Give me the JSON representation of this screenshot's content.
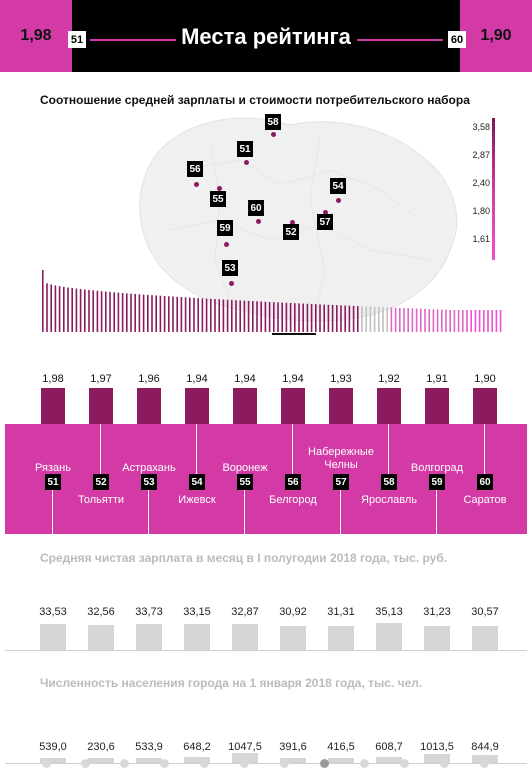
{
  "header": {
    "left_value": "1,98",
    "left_badge": "51",
    "title": "Места рейтинга",
    "right_badge": "60",
    "right_value": "1,90"
  },
  "map": {
    "title": "Соотношение средней зарплаты и стоимости потребительского набора",
    "legend": [
      "3,58",
      "2,87",
      "2,40",
      "1,80",
      "1,61"
    ],
    "pins": [
      "58",
      "51",
      "56",
      "55",
      "54",
      "60",
      "57",
      "52",
      "59",
      "53"
    ]
  },
  "colors": {
    "magenta": "#d43aa6",
    "dark_magenta": "#8b1a5f",
    "gray_bar": "#d6d6d6"
  },
  "ranking": {
    "values": [
      "1,98",
      "1,97",
      "1,96",
      "1,94",
      "1,94",
      "1,94",
      "1,93",
      "1,92",
      "1,91",
      "1,90"
    ],
    "cities": [
      {
        "rank": "51",
        "name": "Рязань"
      },
      {
        "rank": "52",
        "name": "Тольятти"
      },
      {
        "rank": "53",
        "name": "Астрахань"
      },
      {
        "rank": "54",
        "name": "Ижевск"
      },
      {
        "rank": "55",
        "name": "Воронеж"
      },
      {
        "rank": "56",
        "name": "Белгород"
      },
      {
        "rank": "57",
        "name": "Набережные Челны"
      },
      {
        "rank": "58",
        "name": "Ярославль"
      },
      {
        "rank": "59",
        "name": "Волгоград"
      },
      {
        "rank": "60",
        "name": "Саратов"
      }
    ]
  },
  "salary": {
    "title": "Средняя чистая зарплата в месяц в I полугодии 2018 года, тыс. руб.",
    "values": [
      "33,53",
      "32,56",
      "33,73",
      "33,15",
      "32,87",
      "30,92",
      "31,31",
      "35,13",
      "31,23",
      "30,57"
    ]
  },
  "population": {
    "title": "Численность населения города на 1 января 2018 года, тыс. чел.",
    "values": [
      "539,0",
      "230,6",
      "533,9",
      "648,2",
      "1047,5",
      "391,6",
      "416,5",
      "608,7",
      "1013,5",
      "844,9"
    ]
  },
  "chart_data": [
    {
      "type": "bar",
      "title": "Соотношение средней зарплаты и стоимости потребительского набора",
      "categories": [
        "Рязань",
        "Тольятти",
        "Астрахань",
        "Ижевск",
        "Воронеж",
        "Белгород",
        "Набережные Челны",
        "Ярославль",
        "Волгоград",
        "Саратов"
      ],
      "values": [
        1.98,
        1.97,
        1.96,
        1.94,
        1.94,
        1.94,
        1.93,
        1.92,
        1.91,
        1.9
      ]
    },
    {
      "type": "bar",
      "title": "Средняя чистая зарплата в месяц в I полугодии 2018 года, тыс. руб.",
      "categories": [
        "Рязань",
        "Тольятти",
        "Астрахань",
        "Ижевск",
        "Воронеж",
        "Белгород",
        "Набережные Челны",
        "Ярославль",
        "Волгоград",
        "Саратов"
      ],
      "values": [
        33.53,
        32.56,
        33.73,
        33.15,
        32.87,
        30.92,
        31.31,
        35.13,
        31.23,
        30.57
      ]
    },
    {
      "type": "bar",
      "title": "Численность населения города на 1 января 2018 года, тыс. чел.",
      "categories": [
        "Рязань",
        "Тольятти",
        "Астрахань",
        "Ижевск",
        "Воронеж",
        "Белгород",
        "Набережные Челны",
        "Ярославль",
        "Волгоград",
        "Саратов"
      ],
      "values": [
        539.0,
        230.6,
        533.9,
        648.2,
        1047.5,
        391.6,
        416.5,
        608.7,
        1013.5,
        844.9
      ]
    }
  ]
}
